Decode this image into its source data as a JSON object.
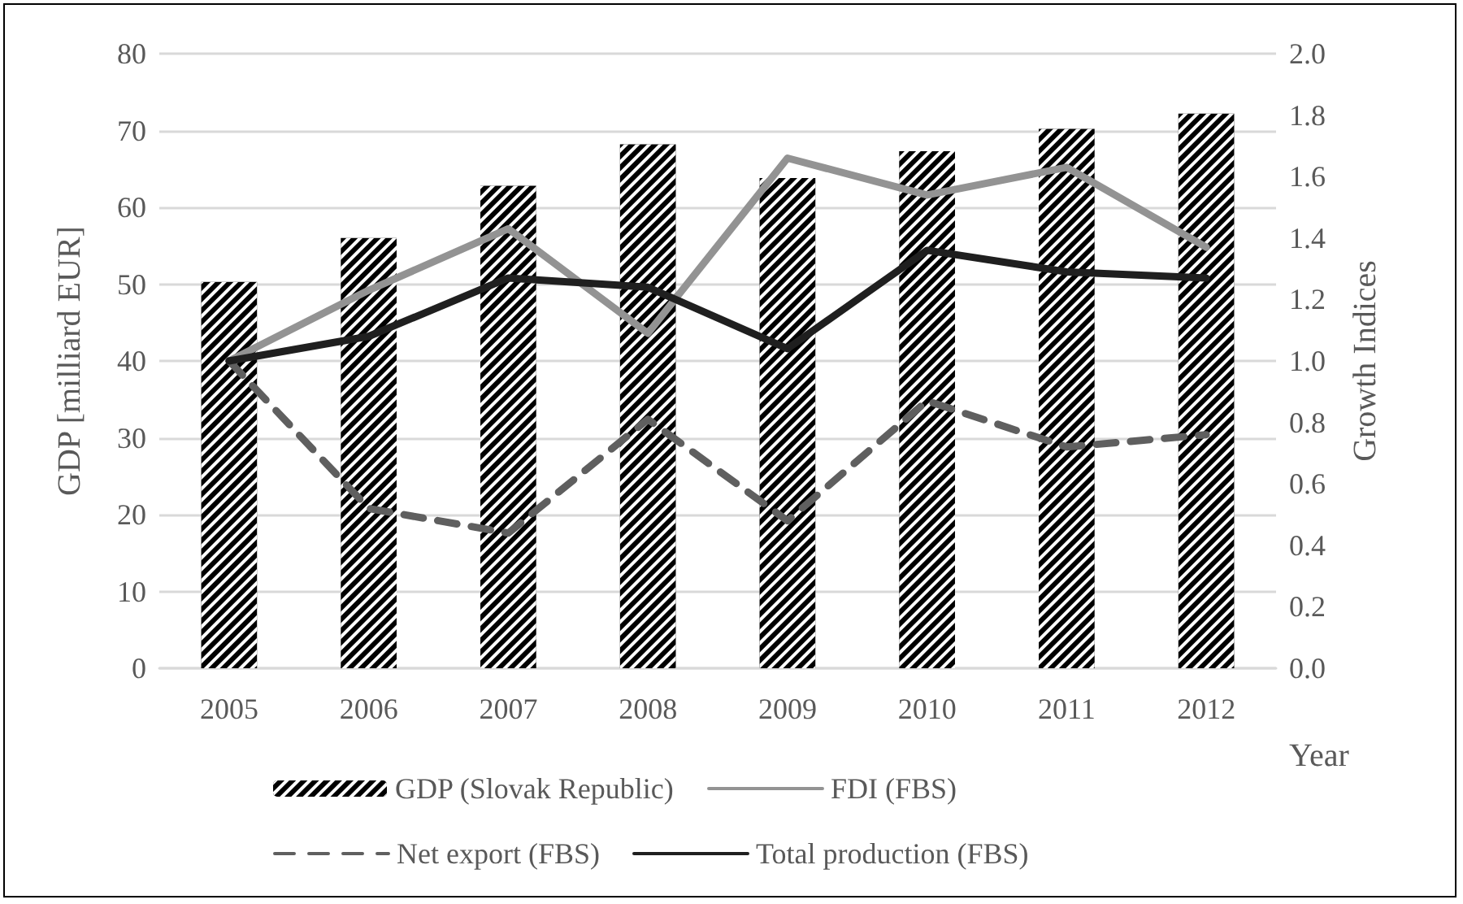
{
  "chart_data": {
    "type": "bar",
    "xlabel": "Year",
    "ylabel": "GDP [milliard EUR]",
    "y2label": "Growth Indices",
    "categories": [
      "2005",
      "2006",
      "2007",
      "2008",
      "2009",
      "2010",
      "2011",
      "2012"
    ],
    "series": [
      {
        "name": "GDP (Slovak Republic)",
        "color": "#000000",
        "values": [
          50.3,
          56,
          62.8,
          68.2,
          63.8,
          67.3,
          70.2,
          72.2
        ]
      },
      {
        "name": "FDI (FBS)",
        "type": "line",
        "axis": "y2",
        "color": "#939393",
        "line_style": "solid",
        "values": [
          1.0,
          1.23,
          1.43,
          1.09,
          1.66,
          1.54,
          1.63,
          1.37
        ]
      },
      {
        "name": "Net export (FBS)",
        "type": "line",
        "axis": "y2",
        "color": "#5f5f5f",
        "line_style": "dashed",
        "values": [
          1.0,
          0.52,
          0.44,
          0.81,
          0.48,
          0.87,
          0.72,
          0.76
        ]
      },
      {
        "name": "Total production (FBS)",
        "type": "line",
        "axis": "y2",
        "color": "#1f1f1f",
        "line_style": "solid",
        "values": [
          1.0,
          1.08,
          1.27,
          1.24,
          1.04,
          1.36,
          1.29,
          1.27
        ]
      }
    ],
    "ylim": [
      0,
      80
    ],
    "yticks": [
      0,
      10,
      20,
      30,
      40,
      50,
      60,
      70,
      80
    ],
    "y2lim": [
      0,
      2
    ],
    "y2ticks": [
      {
        "value": 0,
        "label": "0.0"
      },
      {
        "value": 0.2,
        "label": "0.2"
      },
      {
        "value": 0.4,
        "label": "0.4"
      },
      {
        "value": 0.6,
        "label": "0.6"
      },
      {
        "value": 0.8,
        "label": "0.8"
      },
      {
        "value": 1,
        "label": "1.0"
      },
      {
        "value": 1.2,
        "label": "1.2"
      },
      {
        "value": 1.4,
        "label": "1.4"
      },
      {
        "value": 1.6,
        "label": "1.6"
      },
      {
        "value": 1.8,
        "label": "1.8"
      },
      {
        "value": 2,
        "label": "2.0"
      }
    ],
    "grid": "y",
    "legend": "bottom",
    "marker": "none"
  }
}
